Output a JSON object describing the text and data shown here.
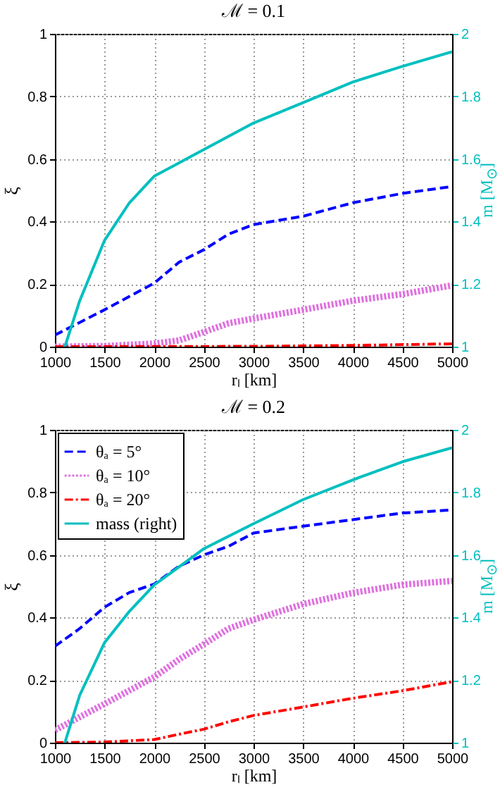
{
  "chart_data": [
    {
      "type": "line",
      "title": "ℳ = 0.1",
      "xlabel": "rₗ [km]",
      "ylabel": "ξ",
      "y2label": "m [M$_{⊙}$]",
      "xlim": [
        1000,
        5000
      ],
      "xticks": [
        1000,
        1500,
        2000,
        2500,
        3000,
        3500,
        4000,
        4500,
        5000
      ],
      "ylim": [
        0,
        1
      ],
      "yticks": [
        0,
        0.2,
        0.4,
        0.6,
        0.8,
        1
      ],
      "y2lim": [
        1,
        2
      ],
      "y2ticks": [
        1,
        1.2,
        1.4,
        1.6,
        1.8,
        2
      ],
      "grid": true,
      "legend": false,
      "series": [
        {
          "color": "#0000ff",
          "line_style": "dashed",
          "x": [
            1000,
            1500,
            2000,
            2250,
            2500,
            2750,
            3000,
            3500,
            4000,
            4500,
            5000
          ],
          "values": [
            0.037,
            0.118,
            0.203,
            0.27,
            0.31,
            0.36,
            0.39,
            0.417,
            0.46,
            0.49,
            0.512
          ]
        },
        {
          "color": "#e070e0",
          "line_style": "dotted",
          "x": [
            1000,
            1500,
            2000,
            2250,
            2500,
            2750,
            3000,
            3500,
            4000,
            4500,
            5000
          ],
          "values": [
            0,
            0.002,
            0.01,
            0.02,
            0.047,
            0.075,
            0.09,
            0.118,
            0.147,
            0.168,
            0.196
          ]
        },
        {
          "color": "#ff0000",
          "line_style": "dashdot",
          "x": [
            1000,
            3000,
            4000,
            5000
          ],
          "values": [
            0,
            0.001,
            0.004,
            0.009
          ]
        },
        {
          "color": "#00bfbf",
          "line_style": "solid",
          "axis": "y2",
          "x": [
            1100,
            1250,
            1500,
            1750,
            2000,
            2500,
            3000,
            3500,
            4000,
            4500,
            5000
          ],
          "values": [
            1.0,
            1.147,
            1.34,
            1.46,
            1.545,
            1.63,
            1.715,
            1.78,
            1.846,
            1.896,
            1.943
          ]
        }
      ]
    },
    {
      "type": "line",
      "title": "ℳ = 0.2",
      "xlabel": "rₗ [km]",
      "ylabel": "ξ",
      "y2label": "m [M$_{⊙}$]",
      "xlim": [
        1000,
        5000
      ],
      "xticks": [
        1000,
        1500,
        2000,
        2500,
        3000,
        3500,
        4000,
        4500,
        5000
      ],
      "ylim": [
        0,
        1
      ],
      "yticks": [
        0,
        0.2,
        0.4,
        0.6,
        0.8,
        1
      ],
      "y2lim": [
        1,
        2
      ],
      "y2ticks": [
        1,
        1.2,
        1.4,
        1.6,
        1.8,
        2
      ],
      "grid": true,
      "legend": "top left",
      "series": [
        {
          "name": "θₐ = 5°",
          "color": "#0000ff",
          "line_style": "dashed",
          "x": [
            1000,
            1250,
            1500,
            1750,
            2000,
            2250,
            2500,
            2750,
            3000,
            3500,
            4000,
            4500,
            5000
          ],
          "values": [
            0.308,
            0.365,
            0.433,
            0.48,
            0.507,
            0.564,
            0.6,
            0.628,
            0.67,
            0.692,
            0.713,
            0.734,
            0.744
          ]
        },
        {
          "name": "θₐ = 10°",
          "color": "#e070e0",
          "line_style": "dotted",
          "x": [
            1000,
            1500,
            2000,
            2250,
            2500,
            2750,
            3000,
            3500,
            4000,
            4500,
            5000
          ],
          "values": [
            0.04,
            0.124,
            0.21,
            0.266,
            0.315,
            0.365,
            0.393,
            0.443,
            0.479,
            0.505,
            0.517
          ]
        },
        {
          "name": "θₐ = 20°",
          "color": "#ff0000",
          "line_style": "dashdot",
          "x": [
            1000,
            1500,
            2000,
            2250,
            2500,
            2750,
            3000,
            3500,
            4000,
            4500,
            5000
          ],
          "values": [
            0,
            0.002,
            0.01,
            0.027,
            0.043,
            0.067,
            0.087,
            0.114,
            0.142,
            0.166,
            0.195
          ]
        },
        {
          "name": "mass (right)",
          "color": "#00bfbf",
          "line_style": "solid",
          "axis": "y2",
          "x": [
            1100,
            1250,
            1500,
            1750,
            2000,
            2500,
            3000,
            3500,
            4000,
            4500,
            5000
          ],
          "values": [
            1.0,
            1.152,
            1.32,
            1.42,
            1.504,
            1.62,
            1.7,
            1.777,
            1.84,
            1.898,
            1.943
          ]
        }
      ]
    }
  ]
}
